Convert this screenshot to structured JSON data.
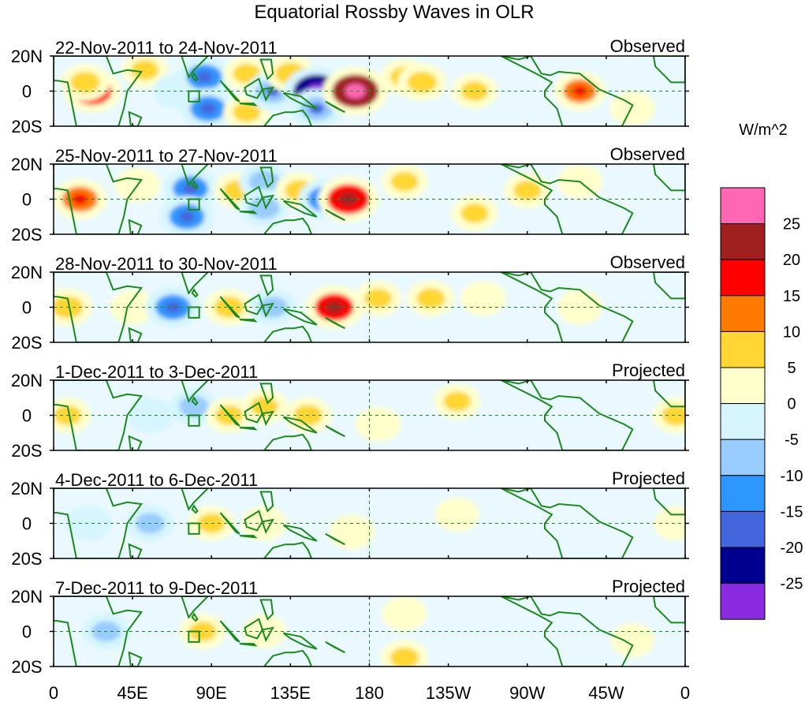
{
  "chart_data": {
    "type": "heatmap",
    "title": "Equatorial Rossby Waves in OLR",
    "colorbar": {
      "units": "W/m^2",
      "levels": [
        "25",
        "20",
        "15",
        "10",
        "5",
        "0",
        "-5",
        "-10",
        "-15",
        "-20",
        "-25"
      ],
      "colors": [
        "#ff66b3",
        "#a02020",
        "#ff0000",
        "#ff7a00",
        "#ffd633",
        "#ffffcc",
        "#d6f5ff",
        "#99ccff",
        "#2e96ff",
        "#4466dd",
        "#000090",
        "#8a2be2"
      ]
    },
    "x_axis": {
      "ticks": [
        "0",
        "45E",
        "90E",
        "135E",
        "180",
        "135W",
        "90W",
        "45W",
        "0"
      ],
      "range": [
        0,
        360
      ]
    },
    "y_axis": {
      "ticks": [
        "20N",
        "0",
        "20S"
      ],
      "range": [
        -20,
        20
      ]
    },
    "reference_lines": {
      "equator_lat": 0,
      "dateline_lon": 180
    },
    "box_marker": {
      "lon_range": [
        77,
        83
      ],
      "lat_range": [
        -6,
        0
      ]
    },
    "panels": [
      {
        "date_range": "22-Nov-2011 to 24-Nov-2011",
        "label": "Observed",
        "anomalies": [
          {
            "lon": 22,
            "lat": 0,
            "value": 15
          },
          {
            "lon": 18,
            "lat": 5,
            "value": 7
          },
          {
            "lon": 52,
            "lat": 12,
            "value": 5
          },
          {
            "lon": 70,
            "lat": 0,
            "value": -5
          },
          {
            "lon": 86,
            "lat": 8,
            "value": -12
          },
          {
            "lon": 88,
            "lat": -10,
            "value": -12
          },
          {
            "lon": 110,
            "lat": 10,
            "value": 5
          },
          {
            "lon": 110,
            "lat": -12,
            "value": 5
          },
          {
            "lon": 125,
            "lat": 0,
            "value": -10
          },
          {
            "lon": 135,
            "lat": 10,
            "value": 8
          },
          {
            "lon": 150,
            "lat": 0,
            "value": -22
          },
          {
            "lon": 150,
            "lat": -10,
            "value": -10
          },
          {
            "lon": 172,
            "lat": 0,
            "value": 22
          },
          {
            "lon": 200,
            "lat": 8,
            "value": 6
          },
          {
            "lon": 210,
            "lat": 5,
            "value": 7
          },
          {
            "lon": 240,
            "lat": 0,
            "value": 5
          },
          {
            "lon": 300,
            "lat": 0,
            "value": 10
          },
          {
            "lon": 330,
            "lat": -10,
            "value": 4
          }
        ]
      },
      {
        "date_range": "25-Nov-2011 to 27-Nov-2011",
        "label": "Observed",
        "anomalies": [
          {
            "lon": 15,
            "lat": 0,
            "value": 12
          },
          {
            "lon": 48,
            "lat": 8,
            "value": 4
          },
          {
            "lon": 78,
            "lat": 6,
            "value": -12
          },
          {
            "lon": 76,
            "lat": -10,
            "value": -12
          },
          {
            "lon": 105,
            "lat": 5,
            "value": 6
          },
          {
            "lon": 120,
            "lat": 10,
            "value": -8
          },
          {
            "lon": 120,
            "lat": -5,
            "value": -8
          },
          {
            "lon": 140,
            "lat": 5,
            "value": 6
          },
          {
            "lon": 155,
            "lat": 0,
            "value": -12
          },
          {
            "lon": 168,
            "lat": 0,
            "value": 18
          },
          {
            "lon": 200,
            "lat": 10,
            "value": 5
          },
          {
            "lon": 240,
            "lat": -8,
            "value": 5
          },
          {
            "lon": 270,
            "lat": 5,
            "value": 5
          },
          {
            "lon": 300,
            "lat": 10,
            "value": 4
          }
        ]
      },
      {
        "date_range": "28-Nov-2011 to 30-Nov-2011",
        "label": "Observed",
        "anomalies": [
          {
            "lon": 8,
            "lat": 0,
            "value": 8
          },
          {
            "lon": 45,
            "lat": 0,
            "value": 4
          },
          {
            "lon": 68,
            "lat": 0,
            "value": -12
          },
          {
            "lon": 100,
            "lat": 0,
            "value": 7
          },
          {
            "lon": 125,
            "lat": 0,
            "value": -6
          },
          {
            "lon": 160,
            "lat": 0,
            "value": 15
          },
          {
            "lon": 185,
            "lat": 5,
            "value": 5
          },
          {
            "lon": 215,
            "lat": 5,
            "value": 6
          },
          {
            "lon": 245,
            "lat": 5,
            "value": 4
          },
          {
            "lon": 300,
            "lat": 0,
            "value": 4
          }
        ]
      },
      {
        "date_range": "1-Dec-2011 to 3-Dec-2011",
        "label": "Projected",
        "anomalies": [
          {
            "lon": 8,
            "lat": 0,
            "value": 5
          },
          {
            "lon": 55,
            "lat": 0,
            "value": -5
          },
          {
            "lon": 80,
            "lat": 5,
            "value": -7
          },
          {
            "lon": 100,
            "lat": 0,
            "value": 5
          },
          {
            "lon": 120,
            "lat": 5,
            "value": 5
          },
          {
            "lon": 145,
            "lat": 0,
            "value": 6
          },
          {
            "lon": 185,
            "lat": -5,
            "value": 4
          },
          {
            "lon": 230,
            "lat": 8,
            "value": 5
          },
          {
            "lon": 355,
            "lat": 0,
            "value": 6
          }
        ]
      },
      {
        "date_range": "4-Dec-2011 to 6-Dec-2011",
        "label": "Projected",
        "anomalies": [
          {
            "lon": 20,
            "lat": 0,
            "value": -5
          },
          {
            "lon": 55,
            "lat": 0,
            "value": -6
          },
          {
            "lon": 90,
            "lat": 0,
            "value": 5
          },
          {
            "lon": 120,
            "lat": 0,
            "value": 4
          },
          {
            "lon": 170,
            "lat": -5,
            "value": 4
          },
          {
            "lon": 230,
            "lat": 5,
            "value": 3
          },
          {
            "lon": 355,
            "lat": 0,
            "value": 4
          }
        ]
      },
      {
        "date_range": "7-Dec-2011 to 9-Dec-2011",
        "label": "Projected",
        "anomalies": [
          {
            "lon": 30,
            "lat": 0,
            "value": -6
          },
          {
            "lon": 85,
            "lat": 0,
            "value": 5
          },
          {
            "lon": 120,
            "lat": 0,
            "value": 3
          },
          {
            "lon": 200,
            "lat": 10,
            "value": 4
          },
          {
            "lon": 200,
            "lat": -15,
            "value": 6
          },
          {
            "lon": 330,
            "lat": -5,
            "value": 3
          }
        ]
      }
    ]
  }
}
